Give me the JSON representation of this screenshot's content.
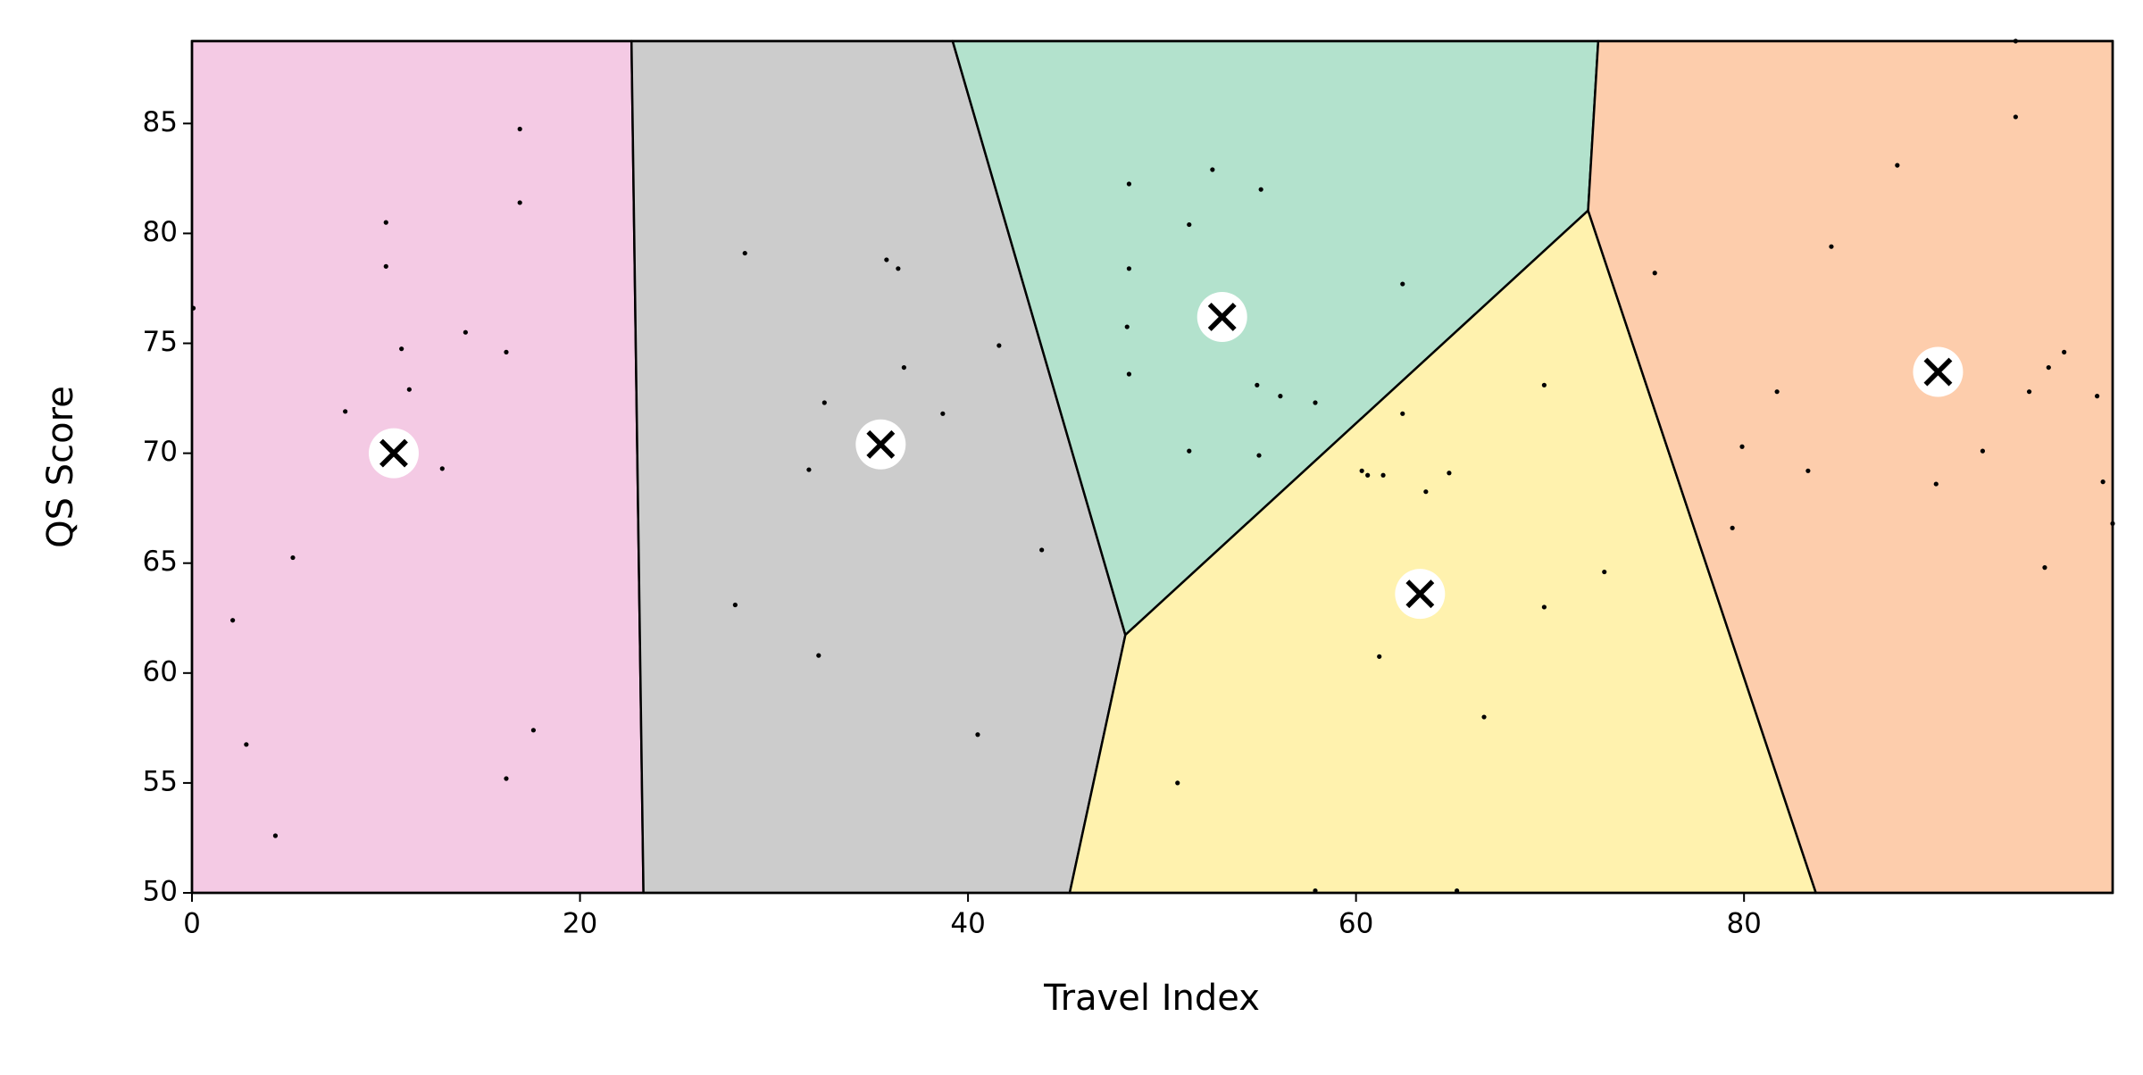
{
  "chart_data": {
    "type": "scatter",
    "xlabel": "Travel Index",
    "ylabel": "QS Score",
    "xlim": [
      0,
      99
    ],
    "ylim": [
      50,
      88.75
    ],
    "xticks": [
      0,
      20,
      40,
      60,
      80
    ],
    "yticks": [
      50,
      55,
      60,
      65,
      70,
      75,
      80,
      85
    ],
    "point_color": "#000000",
    "points": {
      "x": [
        0.07,
        10.0,
        10.0,
        16.9,
        16.9,
        10.8,
        14.1,
        16.2,
        11.2,
        7.9,
        12.9,
        5.2,
        2.1,
        2.8,
        17.6,
        16.2,
        4.3,
        28.5,
        35.8,
        36.4,
        36.7,
        32.6,
        38.7,
        41.6,
        31.8,
        43.8,
        28.0,
        32.3,
        40.5,
        48.3,
        52.6,
        55.1,
        51.4,
        48.3,
        48.2,
        48.3,
        62.4,
        54.9,
        56.1,
        57.9,
        51.4,
        55.0,
        62.4,
        60.3,
        60.6,
        61.4,
        63.6,
        64.8,
        69.7,
        72.8,
        69.7,
        61.2,
        66.6,
        50.8,
        57.9,
        65.2,
        94.0,
        94.0,
        87.9,
        84.5,
        75.4,
        81.7,
        96.5,
        95.7,
        94.7,
        98.2,
        92.3,
        79.9,
        83.3,
        89.9,
        98.5,
        99.0,
        79.4,
        95.5
      ],
      "y": [
        76.6,
        80.5,
        78.5,
        81.4,
        84.75,
        74.75,
        75.5,
        74.6,
        72.9,
        71.9,
        69.3,
        65.25,
        62.4,
        56.75,
        57.4,
        55.2,
        52.6,
        79.1,
        78.8,
        78.4,
        73.9,
        72.3,
        71.8,
        74.9,
        69.25,
        65.6,
        63.1,
        60.8,
        57.2,
        82.25,
        82.9,
        82.0,
        80.4,
        78.4,
        75.75,
        73.6,
        77.7,
        73.1,
        72.6,
        72.3,
        70.1,
        69.9,
        71.8,
        69.2,
        69.0,
        69.0,
        68.25,
        69.1,
        73.1,
        64.6,
        63.0,
        60.75,
        58.0,
        55.0,
        50.1,
        50.1,
        88.75,
        85.3,
        83.1,
        79.4,
        78.2,
        72.8,
        74.6,
        73.9,
        72.8,
        72.6,
        70.1,
        70.3,
        69.2,
        68.6,
        68.7,
        66.8,
        66.6,
        64.8
      ]
    },
    "centroids": {
      "x": [
        10.4,
        35.5,
        53.1,
        63.3,
        90.0
      ],
      "y": [
        70.0,
        70.4,
        76.2,
        63.6,
        73.7
      ],
      "colors": [
        "#f4cae4",
        "#cccccc",
        "#b3e2cd",
        "#fff2ae",
        "#fdcdac"
      ]
    }
  }
}
